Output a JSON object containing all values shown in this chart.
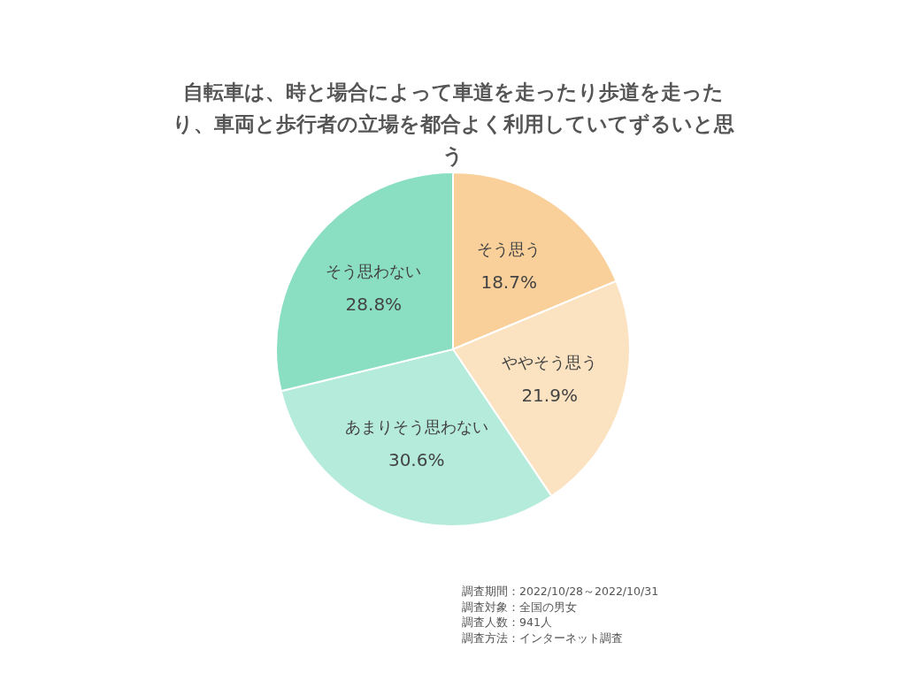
{
  "chart_data": {
    "type": "pie",
    "title": "自転車は、時と場合によって車道を走ったり歩道を走ったり、車両と歩行者の立場を都合よく利用していてずるいと思う",
    "categories": [
      "そう思う",
      "ややそう思う",
      "あまりそう思わない",
      "そう思わない"
    ],
    "values": [
      18.7,
      21.9,
      30.6,
      28.8
    ],
    "colors": [
      "#f9d09a",
      "#fbe3c2",
      "#b5ebda",
      "#8adfc3"
    ],
    "value_labels": [
      "18.7%",
      "21.9%",
      "30.6%",
      "28.8%"
    ],
    "annotations": [
      "調査期間：2022/10/28～2022/10/31",
      "調査対象：全国の男女",
      "調査人数：941人",
      "調査方法：インターネット調査"
    ]
  }
}
